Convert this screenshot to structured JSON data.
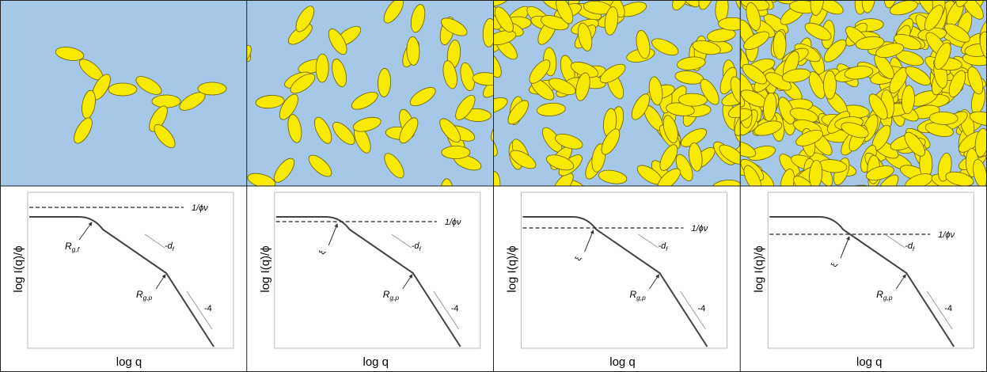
{
  "panels": [
    {
      "y_label": "log I(q)/ϕ",
      "x_label": "log q",
      "line_label": "1/ϕν",
      "knee_label": {
        "base": "R",
        "sub": "g,f"
      },
      "slope_label": {
        "base": "-d",
        "sub": "f"
      },
      "rg_label": {
        "base": "R",
        "sub": "g,p"
      },
      "slope4_label": "-4"
    },
    {
      "y_label": "log I(q)/ϕ",
      "x_label": "log q",
      "line_label": "1/ϕν",
      "cross_label": "ξ",
      "slope_label": {
        "base": "-d",
        "sub": "f"
      },
      "rg_label": {
        "base": "R",
        "sub": "g,p"
      },
      "slope4_label": "-4"
    },
    {
      "y_label": "log I(q)/ϕ",
      "x_label": "log q",
      "line_label": "1/ϕν",
      "cross_label": "ξ",
      "slope_label": {
        "base": "-d",
        "sub": "f"
      },
      "rg_label": {
        "base": "R",
        "sub": "g,p"
      },
      "slope4_label": "-4"
    },
    {
      "y_label": "log I(q)/ϕ",
      "x_label": "log q",
      "line_label": "1/ϕν",
      "cross_label": "ξ",
      "slope_label": {
        "base": "-d",
        "sub": "f"
      },
      "rg_label": {
        "base": "R",
        "sub": "g,p"
      },
      "slope4_label": "-4"
    }
  ]
}
